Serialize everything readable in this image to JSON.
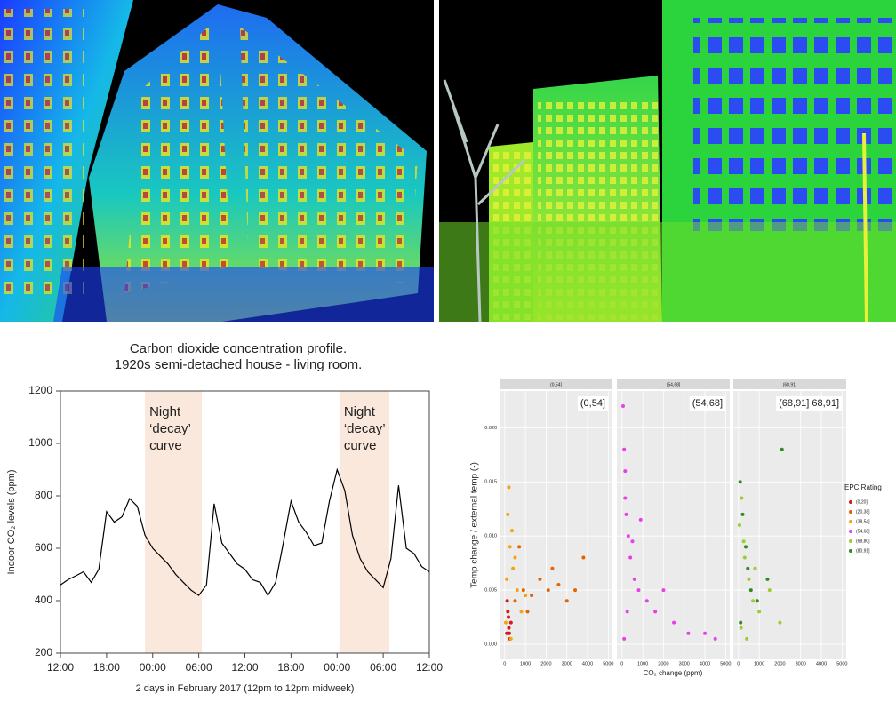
{
  "chart_data": [
    {
      "type": "line",
      "title": [
        "Carbon dioxide concentration profile.",
        "1920s semi-detached house - living room."
      ],
      "y_label": "Indoor CO₂ levels (ppm)",
      "x_label": "2 days in February 2017 (12pm to 12pm midweek)",
      "x": [
        0,
        1,
        2,
        3,
        4,
        5,
        6,
        7,
        8,
        9,
        10,
        11,
        12,
        13,
        14,
        15,
        16,
        17,
        18,
        19,
        20,
        21,
        22,
        23,
        24,
        25,
        26,
        27,
        28,
        29,
        30,
        31,
        32,
        33,
        34,
        35,
        36,
        37,
        38,
        39,
        40,
        41,
        42,
        43,
        44,
        45,
        46,
        47,
        48
      ],
      "series": [
        {
          "color": "#000000",
          "values": [
            460,
            480,
            495,
            510,
            470,
            520,
            740,
            700,
            720,
            790,
            760,
            650,
            600,
            570,
            540,
            500,
            470,
            440,
            420,
            460,
            770,
            620,
            580,
            540,
            520,
            480,
            470,
            420,
            470,
            620,
            780,
            700,
            660,
            610,
            620,
            780,
            900,
            820,
            650,
            560,
            510,
            480,
            450,
            560,
            840,
            600,
            580,
            530,
            510
          ]
        }
      ],
      "shaded_regions": [
        {
          "range": [
            11,
            18.4
          ],
          "text": [
            "Night",
            "‘decay’",
            "curve"
          ]
        },
        {
          "range": [
            36.3,
            42.8
          ],
          "text": [
            "Night",
            "‘decay’",
            "curve"
          ]
        }
      ],
      "shade_color": "#fbe8dc",
      "xlim": [
        0,
        48
      ],
      "xticks": [
        {
          "value": 0,
          "label": "12:00"
        },
        {
          "value": 6,
          "label": "18:00"
        },
        {
          "value": 12,
          "label": "00:00"
        },
        {
          "value": 18,
          "label": "06:00"
        },
        {
          "value": 24,
          "label": "12:00"
        },
        {
          "value": 30,
          "label": "18:00"
        },
        {
          "value": 36,
          "label": "00:00"
        },
        {
          "value": 42,
          "label": "06:00"
        },
        {
          "value": 48,
          "label": "12:00"
        }
      ],
      "ylim": [
        200,
        1200
      ],
      "yticks": [
        200,
        400,
        600,
        800,
        1000,
        1200
      ]
    },
    {
      "type": "scatter",
      "y_label": "Temp change / external temp (-)",
      "x_label": "CO₂ change (ppm)",
      "legend_title": "EPC Rating",
      "xlim": [
        -250,
        5200
      ],
      "xticks": [
        0,
        1000,
        2000,
        3000,
        4000,
        5000
      ],
      "ylim": [
        -0.0014,
        0.0234
      ],
      "yticks": [
        {
          "value": 0,
          "label": "0.000"
        },
        {
          "value": 0.005,
          "label": "0.005"
        },
        {
          "value": 0.01,
          "label": "0.010"
        },
        {
          "value": 0.015,
          "label": "0.015"
        },
        {
          "value": 0.02,
          "label": "0.020"
        }
      ],
      "grid": true,
      "facets": [
        {
          "strip": "(0,54]",
          "label": "(0,54]",
          "series": [
            {
              "name": "(0,20]",
              "color": "#d7191c",
              "x": [
                100,
                200,
                150,
                300,
                250,
                120,
                180,
                220
              ],
              "values": [
                0.001,
                0.0015,
                0.003,
                0.002,
                0.0005,
                0.004,
                0.0025,
                0.001
              ]
            },
            {
              "name": "(20,38]",
              "color": "#e66101",
              "x": [
                500,
                900,
                1300,
                1700,
                2100,
                2600,
                3000,
                3400,
                3800,
                1100,
                2300,
                700
              ],
              "values": [
                0.004,
                0.005,
                0.0045,
                0.006,
                0.005,
                0.0055,
                0.004,
                0.005,
                0.008,
                0.003,
                0.007,
                0.009
              ]
            },
            {
              "name": "(38,54]",
              "color": "#f4a40e",
              "x": [
                50,
                150,
                250,
                400,
                600,
                800,
                200,
                350,
                100,
                500,
                1000,
                300
              ],
              "values": [
                0.002,
                0.012,
                0.009,
                0.007,
                0.005,
                0.003,
                0.0145,
                0.0105,
                0.006,
                0.008,
                0.0045,
                0.0005
              ]
            }
          ]
        },
        {
          "strip": "(54,68]",
          "label": "(54,68]",
          "series": [
            {
              "name": "(54,68]",
              "color": "#e83fe8",
              "x": [
                50,
                100,
                150,
                200,
                300,
                400,
                600,
                800,
                1200,
                1600,
                2000,
                2500,
                3200,
                4000,
                4500,
                150,
                250,
                100,
                500,
                900
              ],
              "values": [
                0.022,
                0.018,
                0.016,
                0.012,
                0.01,
                0.008,
                0.006,
                0.005,
                0.004,
                0.003,
                0.005,
                0.002,
                0.001,
                0.001,
                0.0005,
                0.0135,
                0.003,
                0.0005,
                0.0095,
                0.0115
              ]
            }
          ]
        },
        {
          "strip": "(68,91]",
          "label": "(68,91]  68,91]",
          "series": [
            {
              "name": "(68,80]",
              "color": "#9acd32",
              "x": [
                50,
                150,
                300,
                500,
                700,
                1000,
                1500,
                2000,
                250,
                400,
                120,
                800
              ],
              "values": [
                0.011,
                0.0135,
                0.008,
                0.006,
                0.004,
                0.003,
                0.005,
                0.002,
                0.0095,
                0.0005,
                0.0015,
                0.007
              ]
            },
            {
              "name": "(80,91]",
              "color": "#2e8b22",
              "x": [
                80,
                200,
                350,
                600,
                900,
                1400,
                2100,
                100,
                450
              ],
              "values": [
                0.015,
                0.012,
                0.009,
                0.005,
                0.004,
                0.006,
                0.018,
                0.002,
                0.007
              ]
            }
          ]
        }
      ]
    }
  ]
}
